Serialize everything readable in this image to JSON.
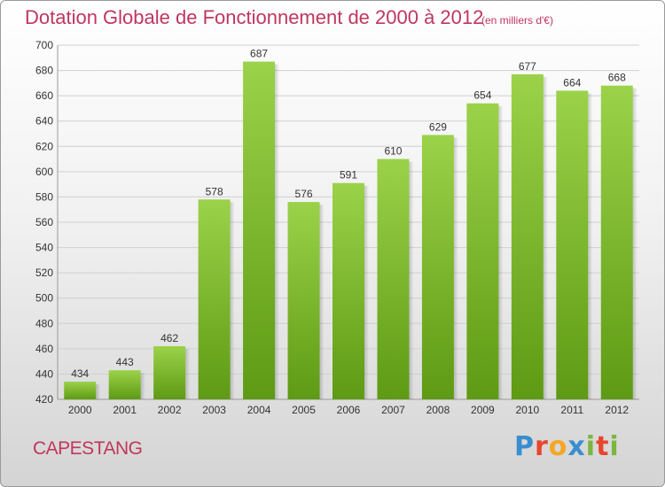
{
  "chart_data": {
    "type": "bar",
    "title": "Dotation Globale de Fonctionnement de 2000 à 2012",
    "unit_label": "(en milliers d'€)",
    "categories": [
      "2000",
      "2001",
      "2002",
      "2003",
      "2004",
      "2005",
      "2006",
      "2007",
      "2008",
      "2009",
      "2010",
      "2011",
      "2012"
    ],
    "values": [
      434,
      443,
      462,
      578,
      687,
      576,
      591,
      610,
      629,
      654,
      677,
      664,
      668
    ],
    "yticks": [
      420,
      440,
      460,
      480,
      500,
      520,
      540,
      560,
      580,
      600,
      620,
      640,
      660,
      680,
      700
    ],
    "ylim": [
      420,
      700
    ],
    "grid": true,
    "bar_color": "#7fbf2e"
  },
  "footer": {
    "city": "CAPESTANG",
    "logo_letters": [
      "P",
      "r",
      "o",
      "x",
      "i",
      "t",
      "i"
    ],
    "logo_colors": [
      "#3a8ecf",
      "#e8442e",
      "#f5a623",
      "#3a8ecf",
      "#7ab640",
      "#e8442e",
      "#7ab640"
    ]
  }
}
